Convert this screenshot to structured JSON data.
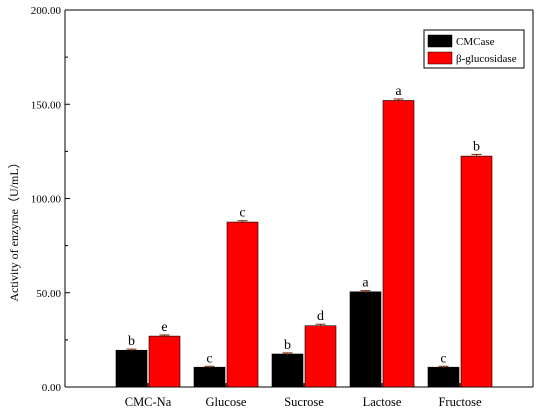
{
  "chart_data": {
    "type": "bar",
    "title": "",
    "ylabel": "Activity of enzyme（U/mL）",
    "xlabel": "",
    "ylim": [
      0,
      200
    ],
    "yticks": [
      0,
      50,
      100,
      150,
      200
    ],
    "ytick_labels": [
      "0.00",
      "50.00",
      "100.00",
      "150.00",
      "200.00"
    ],
    "categories": [
      "CMC-Na",
      "Glucose",
      "Sucrose",
      "Lactose",
      "Fructose"
    ],
    "series": [
      {
        "name": "CMCase",
        "color": "#000000",
        "values": [
          19.5,
          10.5,
          17.5,
          50.5,
          10.5
        ],
        "errors": [
          0.6,
          0.5,
          0.6,
          0.6,
          0.5
        ],
        "sig": [
          "b",
          "c",
          "b",
          "a",
          "c"
        ]
      },
      {
        "name": "β-glucosidase",
        "color": "#ff0000",
        "values": [
          27.0,
          87.5,
          32.5,
          152.0,
          122.5
        ],
        "errors": [
          0.6,
          0.7,
          0.8,
          0.8,
          0.9
        ],
        "sig": [
          "e",
          "c",
          "d",
          "a",
          "b"
        ]
      }
    ],
    "legend_position": "top-right",
    "grid": false
  }
}
